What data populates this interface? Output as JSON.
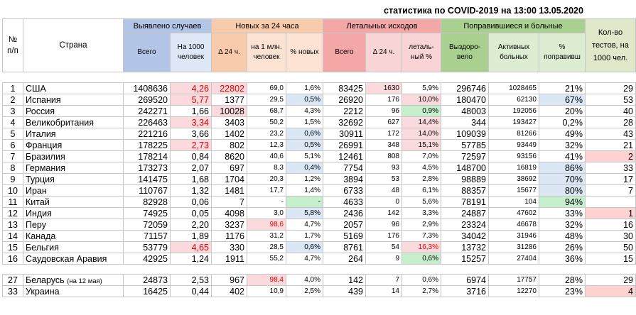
{
  "title": "статистика по COVID-2019 на 13:00 13.05.2020",
  "groups": {
    "num": "№ п/п",
    "country": "Страна",
    "detected": "Выявлено случаев",
    "new24": "Новых за 24 часа",
    "deaths": "Летальных исходов",
    "recovered": "Поправившиеся и больные",
    "tests": "Кол-во тестов, на 1000 чел."
  },
  "subheaders": {
    "total": "Всего",
    "per1000": "На 1000 человек",
    "delta24": "Δ 24 ч.",
    "per1m": "на 1 млн. человек",
    "pctnew": "% новых",
    "dtotal": "Всего",
    "ddelta": "Δ 24 ч.",
    "lethal": "леталь-ный %",
    "recov": "Выздоро-вело",
    "active": "Активных больных",
    "pctrec": "% поправивш"
  },
  "rows": [
    {
      "n": "1",
      "country": "США",
      "total": "1408636",
      "per1000": "4,26",
      "d24": "22802",
      "per1m": "69,0",
      "pnew": "1,6%",
      "deaths": "83425",
      "dd": "1630",
      "let": "5,9%",
      "rec": "296746",
      "act": "1028465",
      "prec": "21%",
      "tests": "29"
    },
    {
      "n": "2",
      "country": "Испания",
      "total": "269520",
      "per1000": "5,77",
      "d24": "1377",
      "per1m": "29,5",
      "pnew": "0,5%",
      "deaths": "26920",
      "dd": "176",
      "let": "10,0%",
      "rec": "180470",
      "act": "62130",
      "prec": "67%",
      "tests": "53"
    },
    {
      "n": "3",
      "country": "Россия",
      "total": "242271",
      "per1000": "1,66",
      "d24": "10028",
      "per1m": "68,7",
      "pnew": "4,3%",
      "deaths": "2212",
      "dd": "96",
      "let": "0,9%",
      "rec": "48003",
      "act": "192056",
      "prec": "20%",
      "tests": "40"
    },
    {
      "n": "4",
      "country": "Великобритания",
      "total": "226463",
      "per1000": "3,34",
      "d24": "3403",
      "per1m": "50,2",
      "pnew": "1,5%",
      "deaths": "32692",
      "dd": "627",
      "let": "14,4%",
      "rec": "344",
      "act": "193427",
      "prec": "0,2%",
      "tests": "28"
    },
    {
      "n": "5",
      "country": "Италия",
      "total": "221216",
      "per1000": "3,66",
      "d24": "1402",
      "per1m": "23,2",
      "pnew": "0,6%",
      "deaths": "30911",
      "dd": "172",
      "let": "14,0%",
      "rec": "109039",
      "act": "81266",
      "prec": "49%",
      "tests": "43"
    },
    {
      "n": "6",
      "country": "Франция",
      "total": "178225",
      "per1000": "2,73",
      "d24": "802",
      "per1m": "12,3",
      "pnew": "0,5%",
      "deaths": "26991",
      "dd": "348",
      "let": "15,1%",
      "rec": "57785",
      "act": "93449",
      "prec": "32%",
      "tests": "21"
    },
    {
      "n": "7",
      "country": "Бразилия",
      "total": "178214",
      "per1000": "0,84",
      "d24": "8620",
      "per1m": "40,6",
      "pnew": "5,1%",
      "deaths": "12461",
      "dd": "808",
      "let": "7,0%",
      "rec": "72597",
      "act": "93156",
      "prec": "41%",
      "tests": "2"
    },
    {
      "n": "8",
      "country": "Германия",
      "total": "173273",
      "per1000": "2,07",
      "d24": "697",
      "per1m": "8,3",
      "pnew": "0,4%",
      "deaths": "7754",
      "dd": "93",
      "let": "4,5%",
      "rec": "148700",
      "act": "16819",
      "prec": "86%",
      "tests": "33"
    },
    {
      "n": "9",
      "country": "Турция",
      "total": "141475",
      "per1000": "1,68",
      "d24": "1704",
      "per1m": "20,3",
      "pnew": "1,2%",
      "deaths": "3894",
      "dd": "53",
      "let": "2,8%",
      "rec": "98889",
      "act": "38692",
      "prec": "70%",
      "tests": "17"
    },
    {
      "n": "10",
      "country": "Иран",
      "total": "110767",
      "per1000": "1,32",
      "d24": "1481",
      "per1m": "17,7",
      "pnew": "1,4%",
      "deaths": "6733",
      "dd": "48",
      "let": "6,1%",
      "rec": "88357",
      "act": "15677",
      "prec": "80%",
      "tests": "7"
    },
    {
      "n": "11",
      "country": "Китай",
      "total": "82928",
      "per1000": "0,06",
      "d24": "7",
      "per1m": "-",
      "pnew": "-",
      "deaths": "4633",
      "dd": "0",
      "let": "5,6%",
      "rec": "78191",
      "act": "104",
      "prec": "94%",
      "tests": ""
    },
    {
      "n": "12",
      "country": "Индия",
      "total": "74925",
      "per1000": "0,05",
      "d24": "4098",
      "per1m": "3,0",
      "pnew": "5,8%",
      "deaths": "2436",
      "dd": "142",
      "let": "3,3%",
      "rec": "24887",
      "act": "47602",
      "prec": "33%",
      "tests": "1"
    },
    {
      "n": "13",
      "country": "Перу",
      "total": "72059",
      "per1000": "2,20",
      "d24": "3237",
      "per1m": "98,6",
      "pnew": "4,7%",
      "deaths": "2057",
      "dd": "96",
      "let": "2,9%",
      "rec": "23324",
      "act": "46678",
      "prec": "32%",
      "tests": "16"
    },
    {
      "n": "14",
      "country": "Канада",
      "total": "71157",
      "per1000": "1,89",
      "d24": "1176",
      "per1m": "31,2",
      "pnew": "1,7%",
      "deaths": "5169",
      "dd": "176",
      "let": "7,3%",
      "rec": "34042",
      "act": "31946",
      "prec": "48%",
      "tests": "30"
    },
    {
      "n": "15",
      "country": "Бельгия",
      "total": "53779",
      "per1000": "4,65",
      "d24": "330",
      "per1m": "28,5",
      "pnew": "0,6%",
      "deaths": "8761",
      "dd": "54",
      "let": "16,3%",
      "rec": "13732",
      "act": "31286",
      "prec": "26%",
      "tests": "50"
    },
    {
      "n": "16",
      "country": "Саудовская Аравия",
      "total": "42925",
      "per1000": "1,24",
      "d24": "1911",
      "per1m": "55,2",
      "pnew": "4,7%",
      "deaths": "264",
      "dd": "9",
      "let": "0,6%",
      "rec": "15257",
      "act": "27404",
      "prec": "36%",
      "tests": "15"
    }
  ],
  "extra": [
    {
      "n": "27",
      "country": "Беларусь",
      "note": "(на 12 мая)",
      "total": "24873",
      "per1000": "2,53",
      "d24": "967",
      "per1m": "98,4",
      "pnew": "4,0%",
      "deaths": "142",
      "dd": "7",
      "let": "0,6%",
      "rec": "6974",
      "act": "17757",
      "prec": "28%",
      "tests": "29"
    },
    {
      "n": "33",
      "country": "Украина",
      "note": "",
      "total": "16425",
      "per1000": "0,44",
      "d24": "402",
      "per1m": "10,9",
      "pnew": "2,5%",
      "deaths": "439",
      "dd": "14",
      "let": "2,7%",
      "rec": "3716",
      "act": "12270",
      "prec": "23%",
      "tests": "4"
    }
  ],
  "highlights": {
    "per1000_red": [
      "1",
      "2",
      "4",
      "6",
      "15"
    ],
    "d24_red": [
      "1"
    ],
    "d24_pink": [
      "3"
    ],
    "per1m_red": [
      "13",
      "27"
    ],
    "pnew_green": [
      "11"
    ],
    "pnew_blue": [
      "2",
      "5",
      "6",
      "8",
      "12",
      "15"
    ],
    "dd_red": [
      "1"
    ],
    "let_pink": [
      "2",
      "4",
      "5",
      "6",
      "15"
    ],
    "let_red": [
      "15"
    ],
    "let_green": [
      "3",
      "16"
    ],
    "prec_blue": [
      "2",
      "8",
      "9",
      "10"
    ],
    "prec_green": [
      "11"
    ],
    "tests_red": [
      "7",
      "12",
      "33"
    ]
  }
}
